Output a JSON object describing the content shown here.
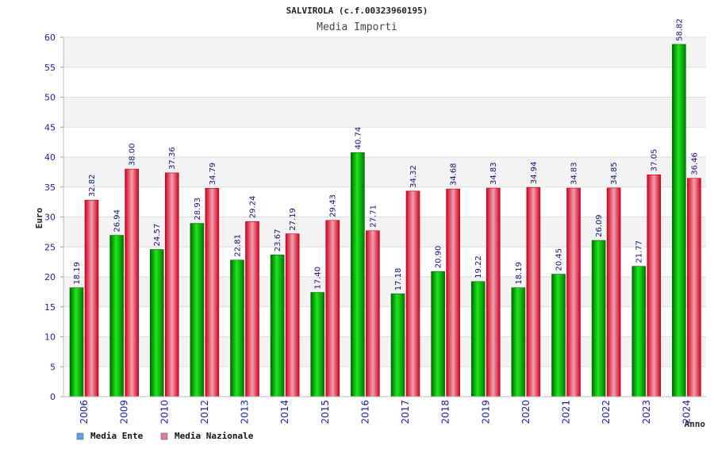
{
  "chart_data": {
    "type": "bar",
    "title": "SALVIROLA (c.f.00323960195)",
    "subtitle": "Media Importi",
    "xlabel": "Anno",
    "ylabel": "Euro",
    "ylim": [
      0,
      60
    ],
    "yticks": [
      0,
      5,
      10,
      15,
      20,
      25,
      30,
      35,
      40,
      45,
      50,
      55,
      60
    ],
    "categories": [
      "2006",
      "2009",
      "2010",
      "2012",
      "2013",
      "2014",
      "2015",
      "2016",
      "2017",
      "2018",
      "2019",
      "2020",
      "2021",
      "2022",
      "2023",
      "2024"
    ],
    "series": [
      {
        "name": "Media Ente",
        "color": "#00b000",
        "legend_color": "#5aa0e6",
        "values": [
          18.19,
          26.94,
          24.57,
          28.93,
          22.81,
          23.67,
          17.4,
          40.74,
          17.18,
          20.9,
          19.22,
          18.19,
          20.45,
          26.09,
          21.77,
          58.82
        ],
        "labels": [
          "18.19",
          "26.94",
          "24.57",
          "28.93",
          "22.81",
          "23.67",
          "17.40",
          "40.74",
          "17.18",
          "20.90",
          "19.22",
          "18.19",
          "20.45",
          "26.09",
          "21.77",
          "58.82"
        ]
      },
      {
        "name": "Media Nazionale",
        "color": "#e8102a",
        "legend_color": "#e07aa8",
        "values": [
          32.82,
          38.0,
          37.36,
          34.79,
          29.24,
          27.19,
          29.43,
          27.71,
          34.32,
          34.68,
          34.83,
          34.94,
          34.83,
          34.85,
          37.05,
          36.46
        ],
        "labels": [
          "32.82",
          "38.00",
          "37.36",
          "34.79",
          "29.24",
          "27.19",
          "29.43",
          "27.71",
          "34.32",
          "34.68",
          "34.83",
          "34.94",
          "34.83",
          "34.85",
          "37.05",
          "36.46"
        ]
      }
    ]
  }
}
